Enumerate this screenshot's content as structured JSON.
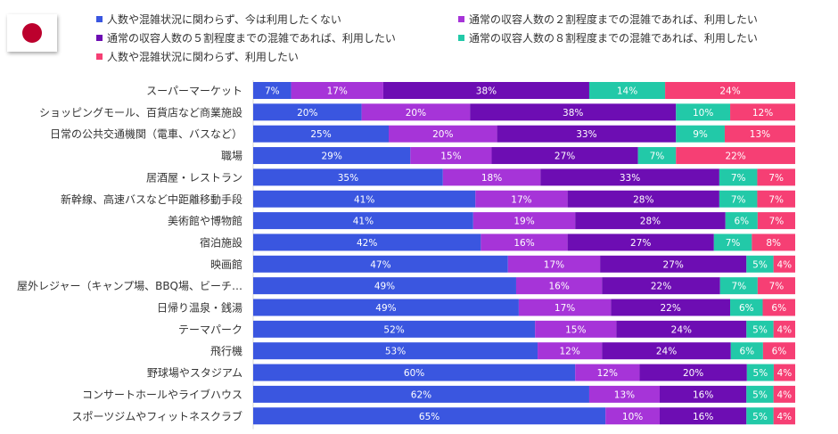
{
  "flag": {
    "country": "Japan",
    "disc_color": "#bc002d"
  },
  "chart_data": {
    "type": "bar",
    "orientation": "horizontal",
    "stacked": true,
    "title": "",
    "xlabel": "",
    "ylabel": "",
    "xlim": [
      0,
      100
    ],
    "unit": "%",
    "legend_position": "top",
    "categories": [
      "スーパーマーケット",
      "ショッピングモール、百貨店など商業施設",
      "日常の公共交通機関（電車、バスなど）",
      "職場",
      "居酒屋・レストラン",
      "新幹線、高速バスなど中距離移動手段",
      "美術館や博物館",
      "宿泊施設",
      "映画館",
      "屋外レジャー（キャンプ場、BBQ場、ビーチ…",
      "日帰り温泉・銭湯",
      "テーマパーク",
      "飛行機",
      "野球場やスタジアム",
      "コンサートホールやライブハウス",
      "スポーツジムやフィットネスクラブ"
    ],
    "series": [
      {
        "name": "人数や混雑状況に関わらず、今は利用したくない",
        "color": "#3a56e0",
        "values": [
          7,
          20,
          25,
          29,
          35,
          41,
          41,
          42,
          47,
          49,
          49,
          52,
          53,
          60,
          62,
          65
        ]
      },
      {
        "name": "通常の収容人数の２割程度までの混雑であれば、利用したい",
        "color": "#a634d8",
        "values": [
          17,
          20,
          20,
          15,
          18,
          17,
          19,
          16,
          17,
          16,
          17,
          15,
          12,
          12,
          13,
          10
        ]
      },
      {
        "name": "通常の収容人数の５割程度までの混雑であれば、利用したい",
        "color": "#6d0db3",
        "values": [
          38,
          38,
          33,
          27,
          33,
          28,
          28,
          27,
          27,
          22,
          22,
          24,
          24,
          20,
          16,
          16
        ]
      },
      {
        "name": "通常の収容人数の８割程度までの混雑であれば、利用したい",
        "color": "#22c9a8",
        "values": [
          14,
          10,
          9,
          7,
          7,
          7,
          6,
          7,
          5,
          7,
          6,
          5,
          6,
          5,
          5,
          5
        ]
      },
      {
        "name": "人数や混雑状況に関わらず、利用したい",
        "color": "#f63f74",
        "values": [
          24,
          12,
          13,
          22,
          7,
          7,
          7,
          8,
          4,
          7,
          6,
          4,
          6,
          4,
          4,
          4
        ]
      }
    ]
  }
}
